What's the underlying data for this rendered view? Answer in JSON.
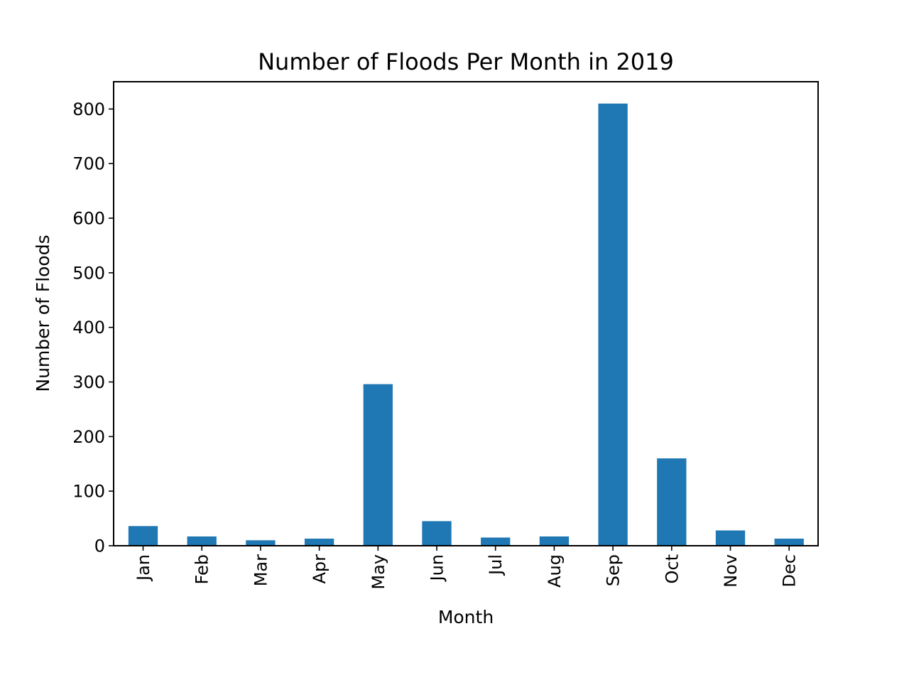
{
  "chart_data": {
    "type": "bar",
    "title": "Number of Floods Per Month in 2019",
    "xlabel": "Month",
    "ylabel": "Number of Floods",
    "categories": [
      "Jan",
      "Feb",
      "Mar",
      "Apr",
      "May",
      "Jun",
      "Jul",
      "Aug",
      "Sep",
      "Oct",
      "Nov",
      "Dec"
    ],
    "values": [
      36,
      17,
      10,
      13,
      296,
      45,
      15,
      17,
      810,
      160,
      28,
      13
    ],
    "ylim": [
      0,
      850
    ],
    "yticks": [
      0,
      100,
      200,
      300,
      400,
      500,
      600,
      700,
      800
    ],
    "bar_color": "#1f77b4",
    "grid": false,
    "legend": "none",
    "xtick_rotation": "vertical"
  }
}
